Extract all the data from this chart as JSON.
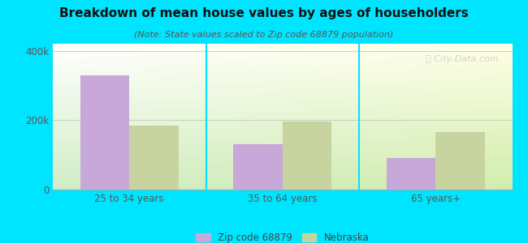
{
  "title": "Breakdown of mean house values by ages of householders",
  "subtitle": "(Note: State values scaled to Zip code 68879 population)",
  "categories": [
    "25 to 34 years",
    "35 to 64 years",
    "65 years+"
  ],
  "zip_values": [
    330000,
    130000,
    90000
  ],
  "state_values": [
    185000,
    195000,
    165000
  ],
  "zip_color": "#C8A8D8",
  "state_color": "#C8D4A0",
  "zip_label": "Zip code 68879",
  "state_label": "Nebraska",
  "ylim": [
    0,
    420000
  ],
  "yticks": [
    0,
    200000,
    400000
  ],
  "ytick_labels": [
    "0",
    "200k",
    "400k"
  ],
  "outer_bg": "#00e5ff",
  "title_fontsize": 11,
  "subtitle_fontsize": 8,
  "bar_width": 0.32,
  "figsize": [
    6.5,
    3.0
  ],
  "dpi": 100
}
